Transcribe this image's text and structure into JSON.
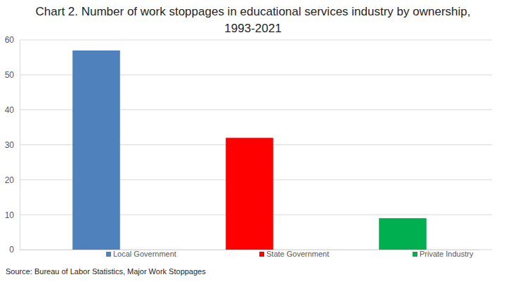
{
  "chart_data": {
    "type": "bar",
    "title": "Chart 2. Number of work stoppages in educational services industry by ownership, 1993-2021",
    "categories": [
      "Local Government",
      "State Government",
      "Private Industry"
    ],
    "values": [
      57,
      32,
      9
    ],
    "colors": [
      "#4f81bd",
      "#ff0000",
      "#00b050"
    ],
    "ylim": [
      0,
      60
    ],
    "yticks": [
      0,
      10,
      20,
      30,
      40,
      50,
      60
    ],
    "grid": true,
    "legend": "bottom",
    "tick_labels": "y",
    "source": "Source: Bureau of Labor Statistics, Major Work Stoppages"
  }
}
